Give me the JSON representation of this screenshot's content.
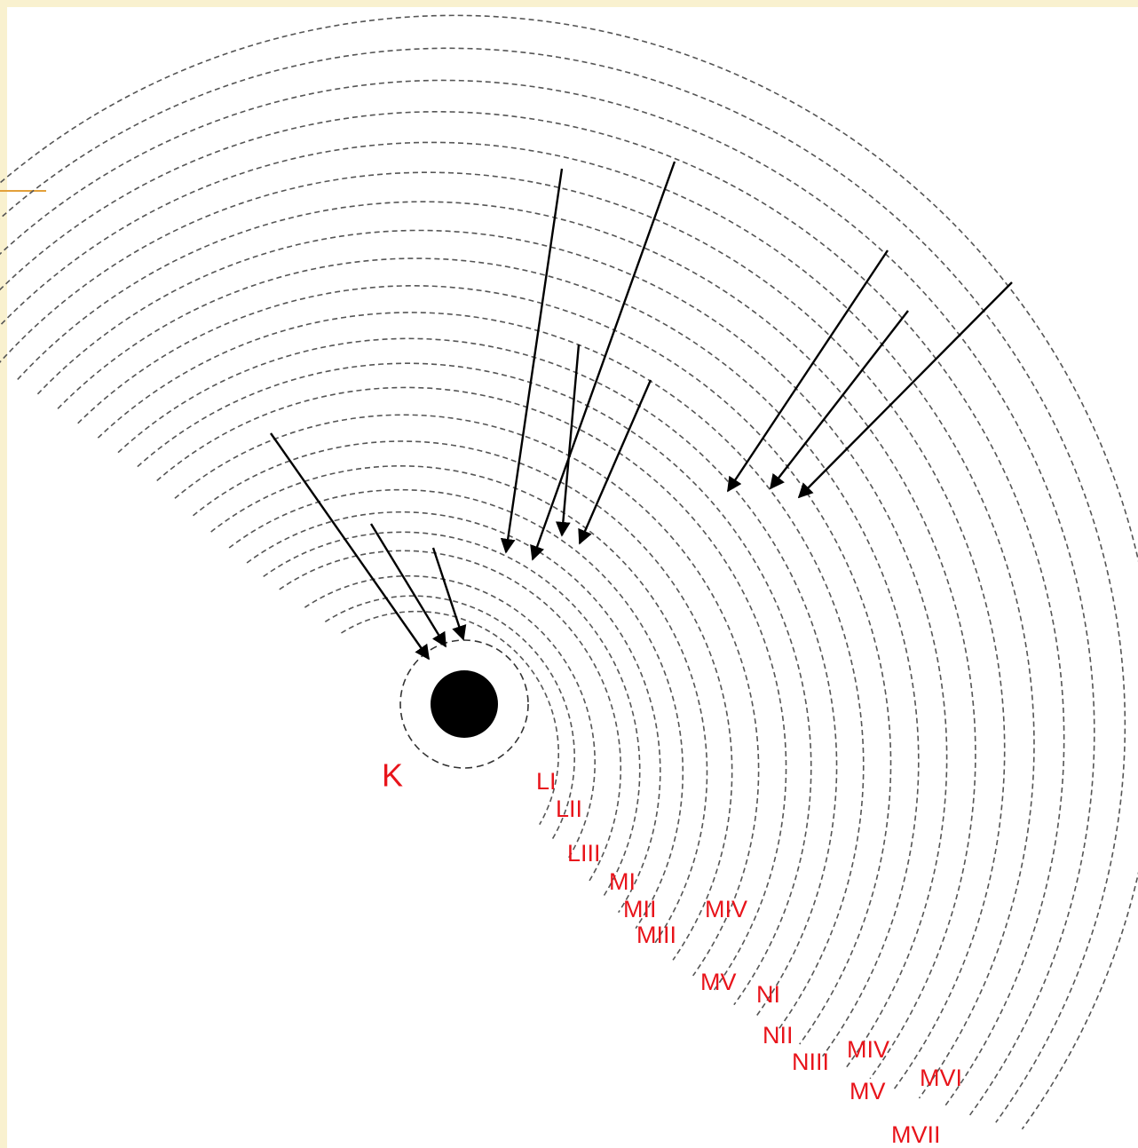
{
  "labels": [
    "K",
    "LI",
    "LII",
    "LIII",
    "MI",
    "MII",
    "MIV",
    "MIII",
    "MV",
    "NI",
    "NII",
    "NIII",
    "MIV",
    "MV",
    "MVI",
    "MVII"
  ]
}
